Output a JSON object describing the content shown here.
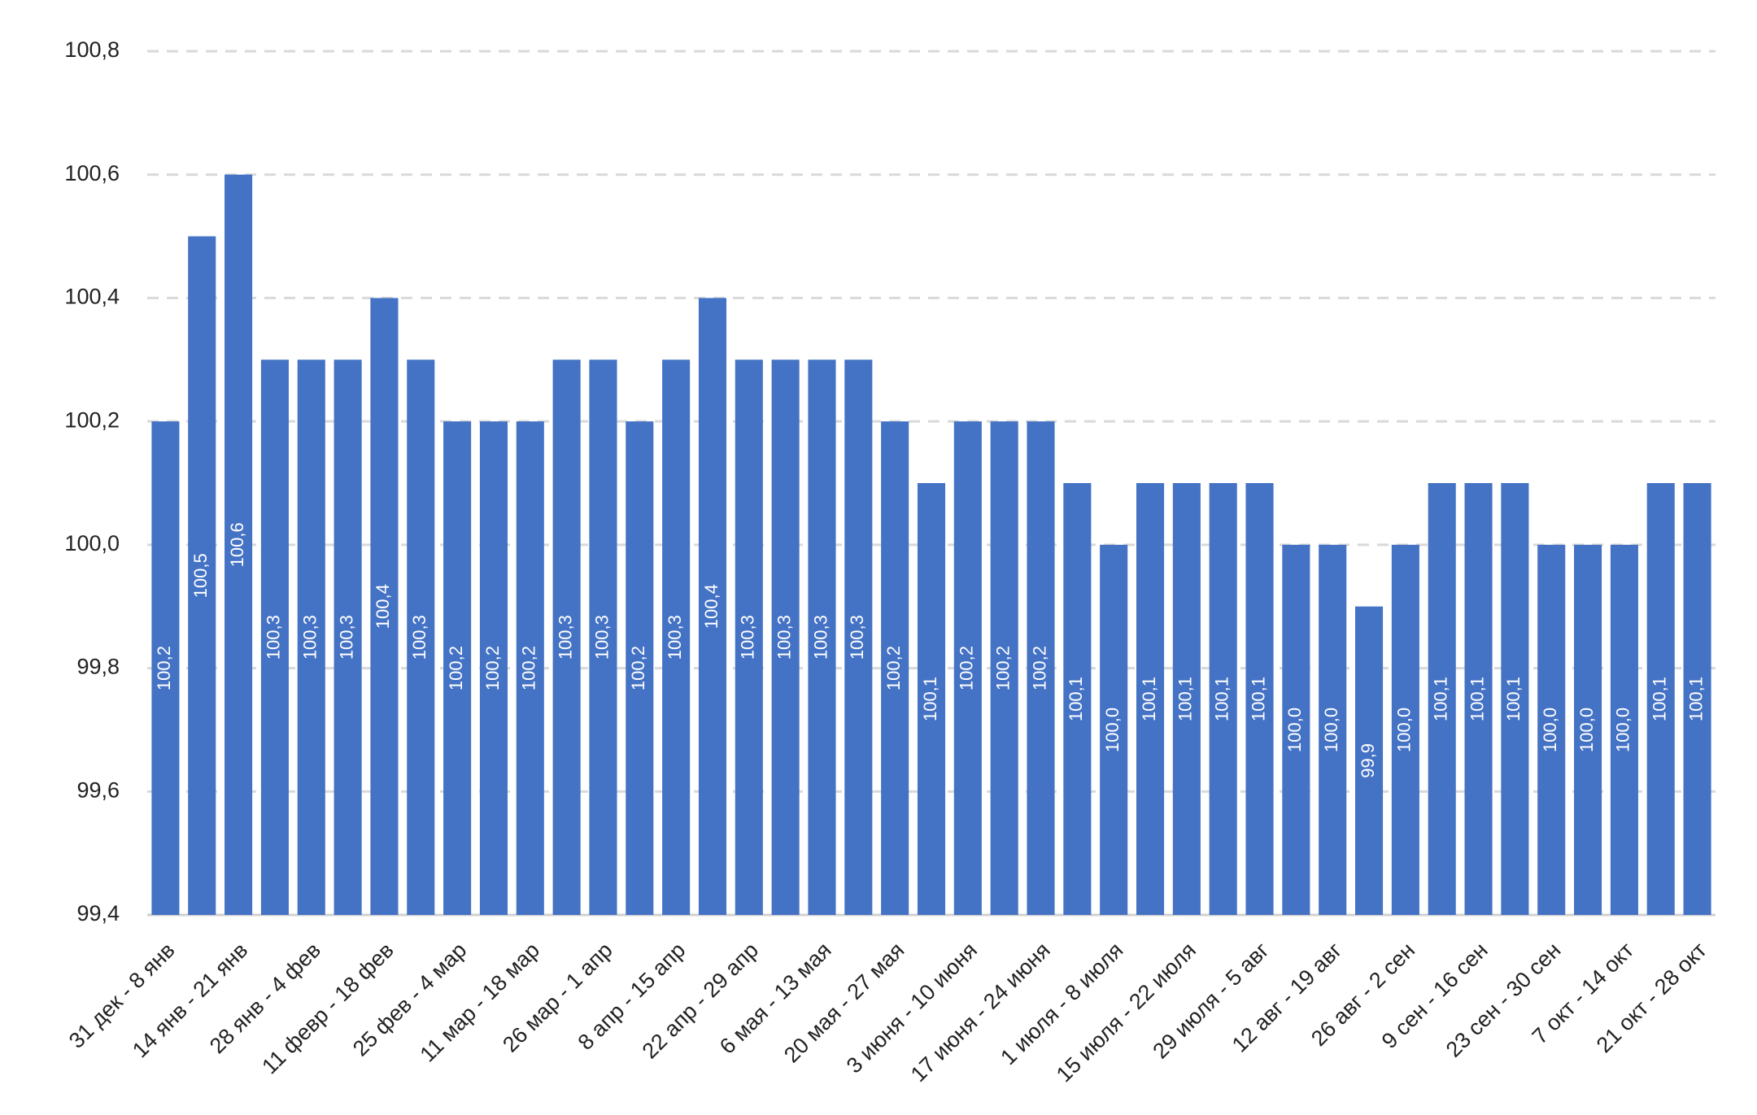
{
  "chart_data": {
    "type": "bar",
    "categories": [
      "31 дек - 8 янв",
      null,
      "14 янв - 21 янв",
      null,
      "28 янв - 4 фев",
      null,
      "11 февр - 18 фев",
      null,
      "25 фев - 4 мар",
      null,
      "11 мар - 18 мар",
      null,
      "26 мар - 1 апр",
      null,
      "8 апр - 15 апр",
      null,
      "22 апр - 29 апр",
      null,
      "6 мая - 13 мая",
      null,
      "20 мая - 27 мая",
      null,
      "3 июня - 10 июня",
      null,
      "17 июня - 24 июня",
      null,
      "1 июля - 8 июля",
      null,
      "15 июля - 22 июля",
      null,
      "29 июля - 5 авг",
      null,
      "12 авг - 19 авг",
      null,
      "26 авг - 2 сен",
      null,
      "9 сен - 16 сен",
      null,
      "23 сен - 30 сен",
      null,
      "7 окт - 14 окт",
      null,
      "21 окт - 28 окт"
    ],
    "values": [
      100.2,
      100.5,
      100.6,
      100.3,
      100.3,
      100.3,
      100.4,
      100.3,
      100.2,
      100.2,
      100.2,
      100.3,
      100.3,
      100.2,
      100.3,
      100.4,
      100.3,
      100.3,
      100.3,
      100.3,
      100.2,
      100.1,
      100.2,
      100.2,
      100.2,
      100.1,
      100.0,
      100.1,
      100.1,
      100.1,
      100.1,
      100.0,
      100.0,
      99.9,
      100.0,
      100.1,
      100.1,
      100.1,
      100.0,
      100.0,
      100.0,
      100.1,
      100.1
    ],
    "value_labels": [
      "100,2",
      "100,5",
      "100,6",
      "100,3",
      "100,3",
      "100,3",
      "100,4",
      "100,3",
      "100,2",
      "100,2",
      "100,2",
      "100,3",
      "100,3",
      "100,2",
      "100,3",
      "100,4",
      "100,3",
      "100,3",
      "100,3",
      "100,3",
      "100,2",
      "100,1",
      "100,2",
      "100,2",
      "100,2",
      "100,1",
      "100,0",
      "100,1",
      "100,1",
      "100,1",
      "100,1",
      "100,0",
      "100,0",
      "99,9",
      "100,0",
      "100,1",
      "100,1",
      "100,1",
      "100,0",
      "100,0",
      "100,0",
      "100,1",
      "100,1"
    ],
    "color": "#4472c4",
    "ylim": [
      99.4,
      100.8
    ],
    "yticks": [
      {
        "value": 99.4,
        "label": "99,4"
      },
      {
        "value": 99.6,
        "label": "99,6"
      },
      {
        "value": 99.8,
        "label": "99,8"
      },
      {
        "value": 100.0,
        "label": "100,0"
      },
      {
        "value": 100.2,
        "label": "100,2"
      },
      {
        "value": 100.4,
        "label": "100,4"
      },
      {
        "value": 100.6,
        "label": "100,6"
      },
      {
        "value": 100.8,
        "label": "100,8"
      }
    ],
    "grid": true
  }
}
